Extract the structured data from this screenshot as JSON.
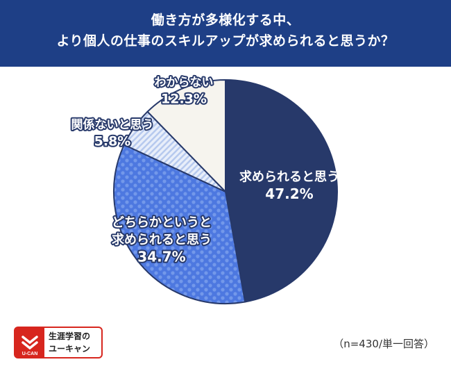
{
  "title": {
    "line1": "働き方が多様化する中、",
    "line2": "より個人の仕事のスキルアップが求められると思うか？"
  },
  "chart_data": {
    "type": "pie",
    "start_angle_deg": 0,
    "direction": "clockwise",
    "slices": [
      {
        "label": "求められると思う",
        "label_lines": [
          "求められると思う"
        ],
        "value": 47.2,
        "value_text": "47.2%",
        "color": "#27396a",
        "pattern": "solid"
      },
      {
        "label": "どちらかというと求められると思う",
        "label_lines": [
          "どちらかというと",
          "求められると思う"
        ],
        "value": 34.7,
        "value_text": "34.7%",
        "color": "#4d78e0",
        "pattern": "dots"
      },
      {
        "label": "関係ないと思う",
        "label_lines": [
          "関係ないと思う"
        ],
        "value": 5.8,
        "value_text": "5.8%",
        "color": "#dce6f8",
        "pattern": "stripes"
      },
      {
        "label": "わからない",
        "label_lines": [
          "わからない"
        ],
        "value": 12.3,
        "value_text": "12.3%",
        "color": "#f6f4ee",
        "pattern": "solid"
      }
    ]
  },
  "logo": {
    "text_line1": "生涯学習の",
    "text_line2": "ユーキャン",
    "mark_text": "U-CAN"
  },
  "note": "（n=430/単一回答）"
}
